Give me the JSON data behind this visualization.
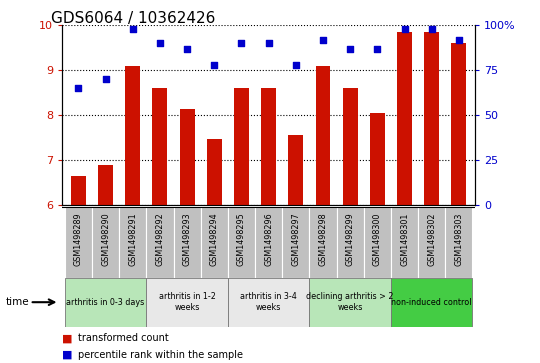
{
  "title": "GDS6064 / 10362426",
  "samples": [
    "GSM1498289",
    "GSM1498290",
    "GSM1498291",
    "GSM1498292",
    "GSM1498293",
    "GSM1498294",
    "GSM1498295",
    "GSM1498296",
    "GSM1498297",
    "GSM1498298",
    "GSM1498299",
    "GSM1498300",
    "GSM1498301",
    "GSM1498302",
    "GSM1498303"
  ],
  "red_values": [
    6.65,
    6.9,
    9.1,
    8.6,
    8.15,
    7.48,
    8.6,
    8.6,
    7.55,
    9.1,
    8.6,
    8.05,
    9.85,
    9.85,
    9.6
  ],
  "blue_values_pct": [
    65,
    70,
    98,
    90,
    87,
    78,
    90,
    90,
    78,
    92,
    87,
    87,
    98,
    98,
    92
  ],
  "ylim_left": [
    6,
    10
  ],
  "ylim_right": [
    0,
    100
  ],
  "yticks_left": [
    6,
    7,
    8,
    9,
    10
  ],
  "ytick_labels_right": [
    "0",
    "25",
    "50",
    "75",
    "100%"
  ],
  "yticks_right": [
    0,
    25,
    50,
    75,
    100
  ],
  "groups": [
    {
      "label": "arthritis in 0-3 days",
      "color": "#b8e6b8",
      "start": 0,
      "end": 3
    },
    {
      "label": "arthritis in 1-2\nweeks",
      "color": "#e8e8e8",
      "start": 3,
      "end": 6
    },
    {
      "label": "arthritis in 3-4\nweeks",
      "color": "#e8e8e8",
      "start": 6,
      "end": 9
    },
    {
      "label": "declining arthritis > 2\nweeks",
      "color": "#b8e6b8",
      "start": 9,
      "end": 12
    },
    {
      "label": "non-induced control",
      "color": "#44cc44",
      "start": 12,
      "end": 15
    }
  ],
  "bar_color": "#cc1100",
  "dot_color": "#0000cc",
  "legend_red": "transformed count",
  "legend_blue": "percentile rank within the sample",
  "left_tick_color": "#cc1100",
  "right_tick_color": "#0000cc",
  "label_box_color": "#c0c0c0",
  "title_fontsize": 11,
  "bar_width": 0.55
}
